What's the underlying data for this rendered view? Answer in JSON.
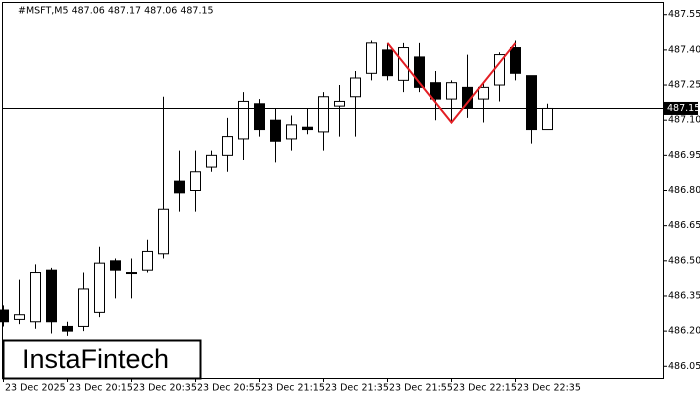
{
  "chart_data": {
    "type": "candlestick",
    "title": "#MSFT,M5  487.06 487.17 487.06 487.15",
    "watermark": "InstaFintech",
    "categories": [
      "23 Dec 2025",
      null,
      null,
      null,
      "23 Dec 20:15",
      null,
      null,
      null,
      "23 Dec 20:35",
      null,
      null,
      null,
      "23 Dec 20:55",
      null,
      null,
      null,
      "23 Dec 21:15",
      null,
      null,
      null,
      "23 Dec 21:35",
      null,
      null,
      null,
      "23 Dec 21:55",
      null,
      null,
      null,
      "23 Dec 22:15",
      null,
      null,
      null,
      "23 Dec 22:35",
      null,
      null
    ],
    "open": [
      486.29,
      486.25,
      486.24,
      486.46,
      486.22,
      486.22,
      486.28,
      486.5,
      486.45,
      486.46,
      486.53,
      486.84,
      486.8,
      486.9,
      486.95,
      487.02,
      487.17,
      487.1,
      487.02,
      487.07,
      487.05,
      487.16,
      487.2,
      487.3,
      487.4,
      487.27,
      487.37,
      487.26,
      487.19,
      487.24,
      487.19,
      487.25,
      487.41,
      487.29,
      487.06
    ],
    "high": [
      486.31,
      486.42,
      486.485,
      486.47,
      486.24,
      486.45,
      486.56,
      486.51,
      486.51,
      486.59,
      487.2,
      486.97,
      486.97,
      486.97,
      487.11,
      487.22,
      487.19,
      487.15,
      487.12,
      487.15,
      487.22,
      487.25,
      487.31,
      487.44,
      487.43,
      487.43,
      487.43,
      487.31,
      487.27,
      487.38,
      487.26,
      487.39,
      487.44,
      487.29,
      487.17
    ],
    "low": [
      486.22,
      486.23,
      486.21,
      486.19,
      486.18,
      486.2,
      486.26,
      486.34,
      486.34,
      486.45,
      486.51,
      486.71,
      486.71,
      486.88,
      486.88,
      486.93,
      487.03,
      486.92,
      486.97,
      487.04,
      486.97,
      487.03,
      487.03,
      487.27,
      487.27,
      487.22,
      487.22,
      487.1,
      487.09,
      487.11,
      487.09,
      487.18,
      487.27,
      487.0,
      487.06
    ],
    "close": [
      486.24,
      486.27,
      486.45,
      486.24,
      486.2,
      486.38,
      486.49,
      486.46,
      486.45,
      486.54,
      486.72,
      486.79,
      486.88,
      486.95,
      487.03,
      487.18,
      487.06,
      487.01,
      487.08,
      487.06,
      487.2,
      487.18,
      487.28,
      487.43,
      487.29,
      487.41,
      487.24,
      487.19,
      487.26,
      487.15,
      487.24,
      487.38,
      487.3,
      487.06,
      487.15
    ],
    "up_color": "#ffffff",
    "down_color": "#000000",
    "current_price": 487.15,
    "pattern": {
      "color": "#e31e24",
      "x": [
        "23 Dec 21:55",
        "23 Dec 22:15",
        "23 Dec 22:35"
      ],
      "values": [
        487.43,
        487.09,
        487.43
      ]
    },
    "ylim": [
      486.0,
      487.6
    ],
    "yticks": [
      487.55,
      {
        "value": 487.4,
        "label": "487.40"
      },
      487.25,
      {
        "value": 487.1,
        "label": "487.10"
      },
      486.95,
      {
        "value": 486.8,
        "label": "486.80"
      },
      486.65,
      {
        "value": 486.5,
        "label": "486.50"
      },
      486.35,
      {
        "value": 486.2,
        "label": "486.20"
      },
      486.05
    ]
  }
}
